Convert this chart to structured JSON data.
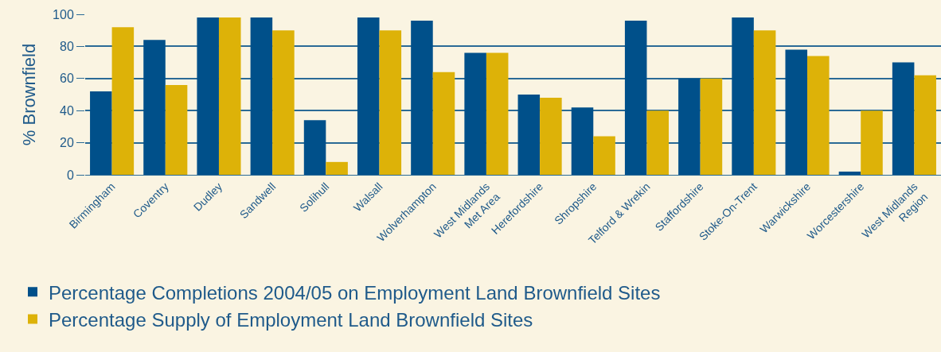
{
  "chart_data": {
    "type": "bar",
    "ylabel": "% Brownfield",
    "categories": [
      "Birmingham",
      "Coventry",
      "Dudley",
      "Sandwell",
      "Solihull",
      "Walsall",
      "Wolverhampton",
      "West Midlands\nMet Area",
      "Herefordshire",
      "Shropshire",
      "Telford & Wrekin",
      "Staffordshire",
      "Stoke-On-Trent",
      "Warwickshire",
      "Worcestershire",
      "West Midlands\nRegion"
    ],
    "series": [
      {
        "name": "Percentage Completions 2004/05 on Employment Land Brownfield Sites",
        "color": "#00508a",
        "values": [
          52,
          84,
          98,
          98,
          34,
          98,
          96,
          76,
          50,
          42,
          96,
          60,
          98,
          78,
          2,
          70
        ]
      },
      {
        "name": "Percentage Supply of Employment Land Brownfield Sites",
        "color": "#ddb208",
        "values": [
          92,
          56,
          98,
          90,
          8,
          90,
          64,
          76,
          48,
          24,
          40,
          60,
          90,
          74,
          40,
          62
        ]
      }
    ],
    "ylim": [
      0,
      100
    ],
    "yticks": [
      0,
      20,
      40,
      60,
      80,
      100
    ],
    "grid": "y",
    "legend": "bottom"
  }
}
